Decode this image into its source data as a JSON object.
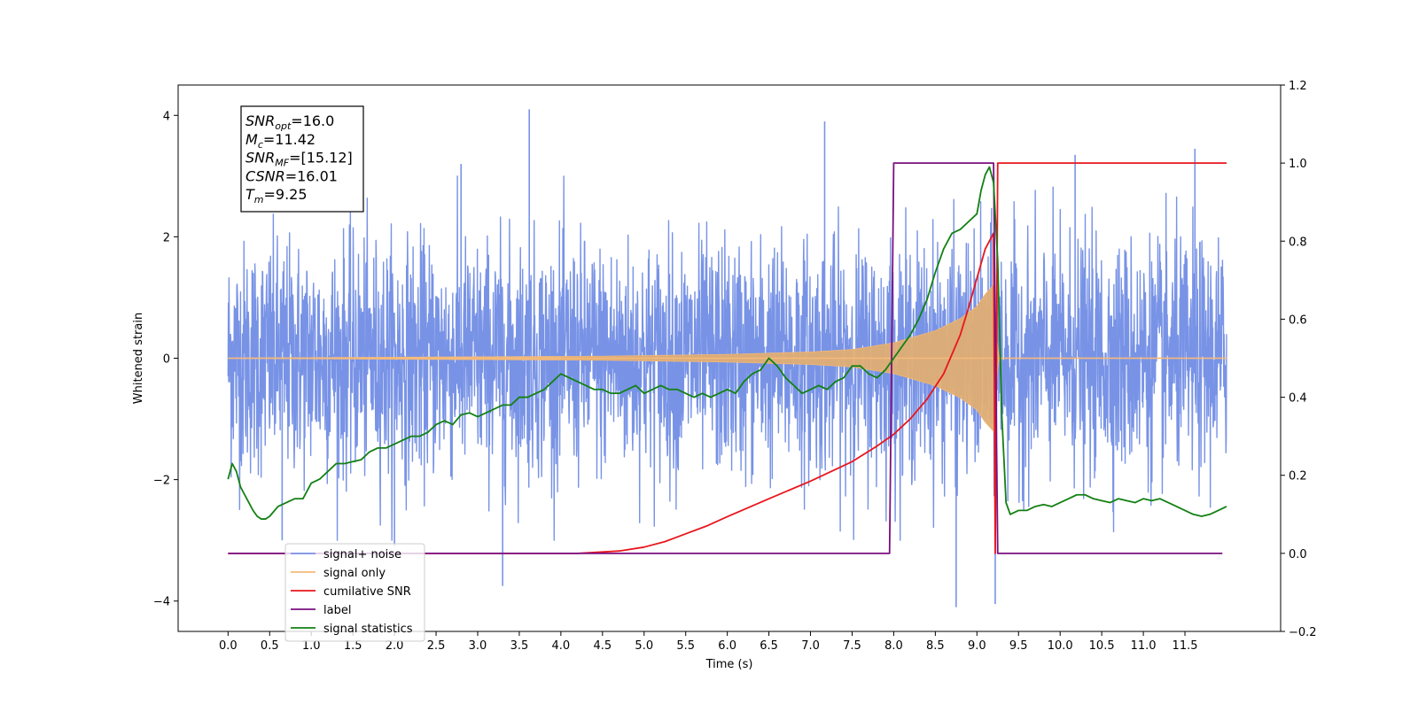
{
  "chart_data": {
    "type": "line",
    "xlabel": "Time (s)",
    "ylabel": "Whitened strain",
    "xlim": [
      -0.6,
      12.65
    ],
    "ylim": [
      -4.5,
      4.5
    ],
    "ylim_right": [
      -0.2,
      1.2
    ],
    "x_ticks": [
      0.0,
      0.5,
      1.0,
      1.5,
      2.0,
      2.5,
      3.0,
      3.5,
      4.0,
      4.5,
      5.0,
      5.5,
      6.0,
      6.5,
      7.0,
      7.5,
      8.0,
      8.5,
      9.0,
      9.5,
      10.0,
      10.5,
      11.0,
      11.5
    ],
    "x_tick_labels": [
      "0.0",
      "0.5",
      "1.0",
      "1.5",
      "2.0",
      "2.5",
      "3.0",
      "3.5",
      "4.0",
      "4.5",
      "5.0",
      "5.5",
      "6.0",
      "6.5",
      "7.0",
      "7.5",
      "8.0",
      "8.5",
      "9.0",
      "9.5",
      "10.0",
      "10.5",
      "11.0",
      "11.5"
    ],
    "y_ticks_left": [
      4,
      2,
      0,
      -2,
      -4
    ],
    "y_tick_labels_left": [
      "4",
      "2",
      "0",
      "−2",
      "−4"
    ],
    "y_ticks_right": [
      1.2,
      1.0,
      0.8,
      0.6,
      0.4,
      0.2,
      0.0,
      -0.2
    ],
    "y_tick_labels_right": [
      "1.2",
      "1.0",
      "0.8",
      "0.6",
      "0.4",
      "0.2",
      "0.0",
      "−0.2"
    ],
    "grid": false,
    "legend_placement": "lower-left",
    "annotation": {
      "lines": [
        {
          "var": "SNR",
          "sub": "opt",
          "value": "=16.0"
        },
        {
          "var": "M",
          "sub": "c",
          "value": "=11.42"
        },
        {
          "var": "SNR",
          "sub": "MF",
          "value": "=[15.12]"
        },
        {
          "var": "CSNR",
          "sub": "",
          "value": "=16.01"
        },
        {
          "var": "T",
          "sub": "m",
          "value": "=9.25"
        }
      ]
    },
    "series": [
      {
        "name": "signal+ noise",
        "axis": "left",
        "color": "#7893e6",
        "kind": "noise",
        "t_range": [
          0,
          12.0
        ],
        "envelope_approx": 1.4,
        "peaks": [
          {
            "t": 3.62,
            "y": 4.1
          },
          {
            "t": 7.17,
            "y": 3.9
          },
          {
            "t": 10.18,
            "y": 3.35
          },
          {
            "t": 11.62,
            "y": 3.45
          },
          {
            "t": 2.8,
            "y": 3.2
          },
          {
            "t": 8.75,
            "y": -4.1
          },
          {
            "t": 9.22,
            "y": -4.05
          },
          {
            "t": 3.3,
            "y": -3.75
          },
          {
            "t": 2.0,
            "y": -3.1
          },
          {
            "t": 0.65,
            "y": -3.0
          }
        ]
      },
      {
        "name": "signal only",
        "axis": "left",
        "color": "#f5ba7a",
        "kind": "chirp",
        "amplitude_envelope": [
          [
            0,
            0.0
          ],
          [
            4.5,
            0.03
          ],
          [
            6.0,
            0.06
          ],
          [
            7.0,
            0.1
          ],
          [
            7.5,
            0.14
          ],
          [
            8.0,
            0.25
          ],
          [
            8.5,
            0.45
          ],
          [
            8.8,
            0.65
          ],
          [
            9.0,
            0.85
          ],
          [
            9.1,
            1.05
          ],
          [
            9.2,
            1.2
          ],
          [
            9.25,
            0.05
          ],
          [
            9.3,
            0.0
          ],
          [
            12.0,
            0.0
          ]
        ]
      },
      {
        "name": "cumilative SNR",
        "axis": "right",
        "color": "#e8161c",
        "x": [
          0,
          4.2,
          4.7,
          5.0,
          5.25,
          5.5,
          5.75,
          6.0,
          6.5,
          7.0,
          7.5,
          7.8,
          8.0,
          8.2,
          8.4,
          8.6,
          8.8,
          8.9,
          9.0,
          9.1,
          9.2,
          9.22,
          9.25,
          12.0
        ],
        "values": [
          0.0,
          0.0,
          0.006,
          0.016,
          0.03,
          0.05,
          0.07,
          0.094,
          0.14,
          0.185,
          0.235,
          0.275,
          0.305,
          0.345,
          0.395,
          0.46,
          0.56,
          0.63,
          0.705,
          0.78,
          0.82,
          0.0,
          1.0,
          1.0
        ]
      },
      {
        "name": "label",
        "axis": "right",
        "color": "#7a0f80",
        "x": [
          0,
          7.95,
          8.0,
          9.2,
          9.25,
          11.95
        ],
        "values": [
          0,
          0,
          1,
          1,
          0,
          0
        ]
      },
      {
        "name": "signal statistics",
        "axis": "right",
        "color": "#138013",
        "x": [
          0,
          0.05,
          0.1,
          0.15,
          0.2,
          0.25,
          0.3,
          0.35,
          0.4,
          0.45,
          0.5,
          0.6,
          0.7,
          0.8,
          0.9,
          1.0,
          1.1,
          1.2,
          1.3,
          1.4,
          1.5,
          1.6,
          1.7,
          1.8,
          1.9,
          2.0,
          2.1,
          2.2,
          2.3,
          2.4,
          2.5,
          2.6,
          2.7,
          2.8,
          2.9,
          3.0,
          3.1,
          3.2,
          3.3,
          3.4,
          3.5,
          3.6,
          3.7,
          3.8,
          3.9,
          4.0,
          4.1,
          4.2,
          4.3,
          4.4,
          4.5,
          4.6,
          4.7,
          4.8,
          4.9,
          5.0,
          5.1,
          5.2,
          5.3,
          5.4,
          5.5,
          5.6,
          5.7,
          5.8,
          5.9,
          6.0,
          6.1,
          6.2,
          6.3,
          6.4,
          6.5,
          6.6,
          6.7,
          6.8,
          6.9,
          7.0,
          7.1,
          7.2,
          7.3,
          7.4,
          7.5,
          7.6,
          7.7,
          7.8,
          7.9,
          8.0,
          8.1,
          8.2,
          8.3,
          8.4,
          8.5,
          8.6,
          8.7,
          8.8,
          8.9,
          9.0,
          9.05,
          9.1,
          9.15,
          9.2,
          9.25,
          9.3,
          9.35,
          9.4,
          9.5,
          9.6,
          9.7,
          9.8,
          9.9,
          10.0,
          10.1,
          10.2,
          10.3,
          10.4,
          10.5,
          10.6,
          10.7,
          10.8,
          10.9,
          11.0,
          11.1,
          11.2,
          11.3,
          11.4,
          11.5,
          11.6,
          11.7,
          11.8,
          11.9,
          12.0
        ],
        "values": [
          0.19,
          0.23,
          0.21,
          0.17,
          0.15,
          0.13,
          0.11,
          0.095,
          0.088,
          0.088,
          0.095,
          0.12,
          0.13,
          0.14,
          0.14,
          0.18,
          0.19,
          0.21,
          0.23,
          0.23,
          0.235,
          0.24,
          0.26,
          0.27,
          0.27,
          0.28,
          0.29,
          0.3,
          0.3,
          0.31,
          0.33,
          0.34,
          0.33,
          0.355,
          0.36,
          0.35,
          0.36,
          0.37,
          0.38,
          0.38,
          0.4,
          0.4,
          0.41,
          0.42,
          0.44,
          0.46,
          0.45,
          0.44,
          0.43,
          0.42,
          0.42,
          0.41,
          0.41,
          0.42,
          0.43,
          0.41,
          0.42,
          0.43,
          0.42,
          0.42,
          0.41,
          0.4,
          0.41,
          0.4,
          0.41,
          0.42,
          0.41,
          0.44,
          0.46,
          0.47,
          0.5,
          0.48,
          0.45,
          0.43,
          0.41,
          0.42,
          0.43,
          0.42,
          0.44,
          0.45,
          0.48,
          0.48,
          0.46,
          0.45,
          0.47,
          0.5,
          0.53,
          0.56,
          0.6,
          0.65,
          0.72,
          0.78,
          0.82,
          0.83,
          0.85,
          0.87,
          0.93,
          0.97,
          0.99,
          0.95,
          0.75,
          0.35,
          0.13,
          0.1,
          0.11,
          0.11,
          0.12,
          0.125,
          0.12,
          0.13,
          0.14,
          0.15,
          0.15,
          0.14,
          0.135,
          0.13,
          0.14,
          0.135,
          0.13,
          0.14,
          0.135,
          0.14,
          0.13,
          0.12,
          0.11,
          0.1,
          0.095,
          0.1,
          0.11,
          0.12
        ]
      }
    ]
  }
}
